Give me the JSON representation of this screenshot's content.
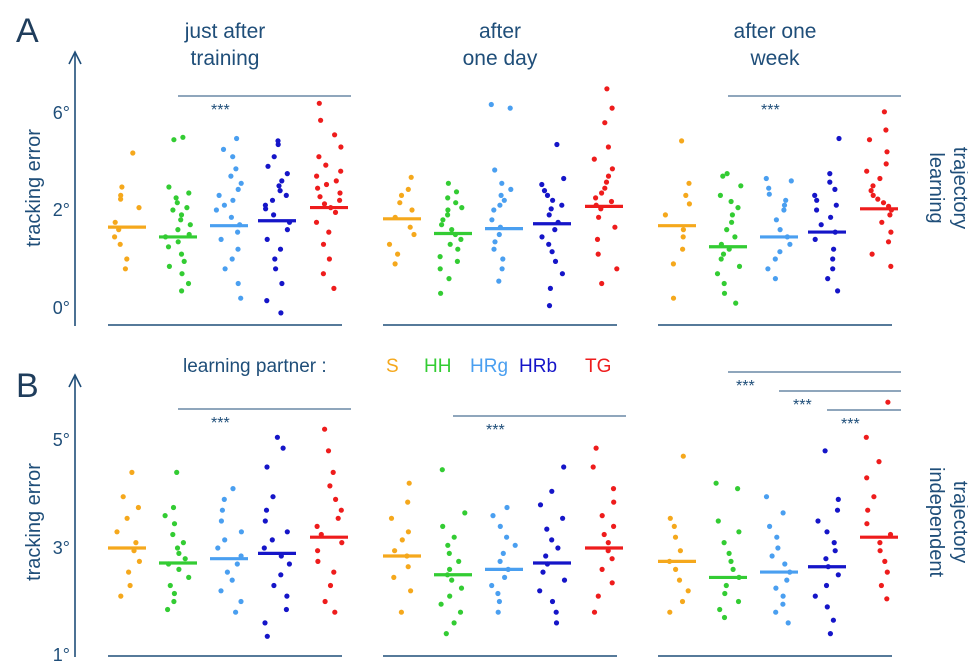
{
  "figure": {
    "panel_letters": [
      "A",
      "B"
    ],
    "conditions": [
      [
        "just after",
        "training"
      ],
      [
        "after",
        "one day"
      ],
      [
        "after one",
        "week"
      ]
    ],
    "legend_label": "learning partner :",
    "right_labels": {
      "A": [
        "learning",
        "trajectory"
      ],
      "B": [
        "independent",
        "trajectory"
      ]
    },
    "y_label": "tracking error",
    "significance_text": "***"
  },
  "groups": [
    {
      "key": "S",
      "color": "#f5a81c"
    },
    {
      "key": "HH",
      "color": "#33cc33"
    },
    {
      "key": "HRg",
      "color": "#4a9ff0"
    },
    {
      "key": "HRb",
      "color": "#1515c8"
    },
    {
      "key": "TG",
      "color": "#ee1c1c"
    }
  ],
  "chart_data": [
    {
      "type": "scatter",
      "panel": "A",
      "title": "learning trajectory",
      "ylabel": "tracking error",
      "yticks": [
        "0°",
        "2°",
        "6°"
      ],
      "ylim": [
        0,
        8
      ],
      "conditions": [
        "just after training",
        "after one day",
        "after one week"
      ],
      "series": [
        {
          "name": "S",
          "means": [
            1.65,
            1.82,
            1.68
          ],
          "points": [
            [
              0.8,
              1.0,
              1.3,
              1.45,
              1.6,
              1.75,
              2.1,
              2.45,
              2.6,
              2.95,
              4.35
            ],
            [
              0.9,
              1.1,
              1.3,
              1.5,
              1.65,
              1.85,
              2.0,
              2.3,
              2.6,
              2.85,
              3.35
            ],
            [
              0.2,
              0.9,
              1.2,
              1.45,
              1.6,
              1.9,
              2.25,
              2.6,
              3.1,
              4.85
            ]
          ]
        },
        {
          "name": "HH",
          "means": [
            1.45,
            1.52,
            1.25
          ],
          "points": [
            [
              0.35,
              0.5,
              0.7,
              0.85,
              0.95,
              1.1,
              1.25,
              1.35,
              1.45,
              1.5,
              1.6,
              1.7,
              1.8,
              1.9,
              2.0,
              2.1,
              2.3,
              2.5,
              2.7,
              2.95,
              4.9,
              5.0
            ],
            [
              0.3,
              0.6,
              0.8,
              0.95,
              1.05,
              1.2,
              1.3,
              1.4,
              1.5,
              1.6,
              1.7,
              1.8,
              1.9,
              2.0,
              2.1,
              2.3,
              2.5,
              2.75,
              3.1
            ],
            [
              0.1,
              0.3,
              0.5,
              0.7,
              0.85,
              1.0,
              1.1,
              1.2,
              1.3,
              1.45,
              1.6,
              1.75,
              1.9,
              2.1,
              2.35,
              2.6,
              3.0,
              3.4,
              3.5
            ]
          ]
        },
        {
          "name": "HRg",
          "means": [
            1.68,
            1.62,
            1.45
          ],
          "points": [
            [
              0.2,
              0.5,
              0.8,
              1.0,
              1.2,
              1.4,
              1.55,
              1.7,
              1.85,
              2.0,
              2.2,
              2.4,
              2.6,
              2.85,
              3.1,
              3.4,
              3.7,
              4.2,
              4.5,
              4.95
            ],
            [
              0.55,
              0.8,
              1.0,
              1.2,
              1.35,
              1.5,
              1.65,
              1.8,
              2.0,
              2.2,
              2.4,
              2.6,
              2.85,
              3.1,
              3.65,
              6.2,
              6.35
            ],
            [
              0.6,
              0.8,
              1.0,
              1.15,
              1.3,
              1.45,
              1.6,
              1.8,
              2.0,
              2.2,
              2.4,
              2.65,
              2.9,
              3.2,
              3.3
            ]
          ]
        },
        {
          "name": "HRb",
          "means": [
            1.78,
            1.72,
            1.55
          ],
          "points": [
            [
              -0.1,
              0.15,
              0.5,
              0.8,
              1.0,
              1.2,
              1.4,
              1.6,
              1.75,
              1.9,
              2.05,
              2.2,
              2.4,
              2.6,
              2.8,
              3.0,
              3.2,
              3.5,
              3.8,
              4.2,
              4.7,
              4.85
            ],
            [
              0.05,
              0.4,
              0.7,
              0.95,
              1.15,
              1.3,
              1.45,
              1.6,
              1.75,
              1.9,
              2.05,
              2.2,
              2.4,
              2.6,
              2.8,
              3.05,
              3.3,
              4.7
            ],
            [
              0.35,
              0.6,
              0.8,
              1.0,
              1.2,
              1.4,
              1.55,
              1.7,
              1.85,
              2.0,
              2.2,
              2.4,
              2.6,
              2.85,
              3.15,
              3.5,
              4.95
            ]
          ]
        },
        {
          "name": "TG",
          "means": [
            2.1,
            2.15,
            2.05
          ],
          "points": [
            [
              0.4,
              0.7,
              1.0,
              1.3,
              1.55,
              1.75,
              1.95,
              2.1,
              2.25,
              2.4,
              2.55,
              2.7,
              2.9,
              3.05,
              3.2,
              3.4,
              3.6,
              3.85,
              4.2,
              4.6,
              5.1,
              5.7,
              6.4
            ],
            [
              0.5,
              0.8,
              1.1,
              1.4,
              1.65,
              1.85,
              2.05,
              2.2,
              2.35,
              2.5,
              2.7,
              2.9,
              3.15,
              3.4,
              3.7,
              4.1,
              4.6,
              5.6,
              6.2,
              7.0
            ],
            [
              0.85,
              1.1,
              1.35,
              1.55,
              1.75,
              1.9,
              2.0,
              2.15,
              2.3,
              2.45,
              2.6,
              2.8,
              3.0,
              3.3,
              3.6,
              3.9,
              4.4,
              4.9,
              5.3,
              6.05
            ]
          ]
        }
      ],
      "significance": [
        {
          "condition": "just after training",
          "from": "HH",
          "to": "TG",
          "label": "***"
        },
        {
          "condition": "after one week",
          "from": "HH",
          "to": "TG",
          "label": "***"
        }
      ]
    },
    {
      "type": "scatter",
      "panel": "B",
      "title": "independent trajectory",
      "ylabel": "tracking error",
      "yticks": [
        "1°",
        "3°",
        "5°"
      ],
      "ylim": [
        1,
        6
      ],
      "conditions": [
        "just after training",
        "after one day",
        "after one week"
      ],
      "series": [
        {
          "name": "S",
          "means": [
            3.0,
            2.85,
            2.75
          ],
          "points": [
            [
              2.1,
              2.3,
              2.55,
              2.75,
              2.95,
              3.1,
              3.3,
              3.55,
              3.75,
              3.95,
              4.4
            ],
            [
              1.8,
              2.2,
              2.45,
              2.65,
              2.85,
              2.95,
              3.15,
              3.3,
              3.55,
              3.85,
              4.2
            ],
            [
              1.8,
              2.0,
              2.2,
              2.4,
              2.6,
              2.75,
              2.95,
              3.2,
              3.4,
              3.55,
              4.7
            ]
          ]
        },
        {
          "name": "HH",
          "means": [
            2.72,
            2.5,
            2.45
          ],
          "points": [
            [
              1.85,
              2.0,
              2.15,
              2.3,
              2.45,
              2.6,
              2.7,
              2.8,
              2.9,
              3.0,
              3.1,
              3.25,
              3.45,
              3.6,
              3.75,
              4.4
            ],
            [
              1.4,
              1.6,
              1.8,
              1.95,
              2.1,
              2.25,
              2.4,
              2.5,
              2.6,
              2.75,
              2.9,
              3.05,
              3.2,
              3.4,
              3.65,
              4.45
            ],
            [
              1.7,
              1.85,
              2.0,
              2.15,
              2.3,
              2.45,
              2.6,
              2.75,
              2.9,
              3.1,
              3.3,
              3.5,
              4.1,
              4.2
            ]
          ]
        },
        {
          "name": "HRg",
          "means": [
            2.8,
            2.6,
            2.55
          ],
          "points": [
            [
              1.8,
              2.0,
              2.2,
              2.4,
              2.55,
              2.7,
              2.85,
              3.0,
              3.15,
              3.3,
              3.5,
              3.7,
              3.9,
              4.1
            ],
            [
              1.8,
              2.0,
              2.15,
              2.3,
              2.45,
              2.6,
              2.75,
              2.9,
              3.05,
              3.2,
              3.4,
              3.6,
              3.75
            ],
            [
              1.6,
              1.8,
              1.95,
              2.1,
              2.25,
              2.4,
              2.55,
              2.7,
              2.85,
              3.0,
              3.2,
              3.4,
              3.65,
              3.95
            ]
          ]
        },
        {
          "name": "HRb",
          "means": [
            2.9,
            2.72,
            2.65
          ],
          "points": [
            [
              1.35,
              1.6,
              1.85,
              2.1,
              2.3,
              2.5,
              2.7,
              2.85,
              3.0,
              3.15,
              3.3,
              3.5,
              3.7,
              3.95,
              4.5,
              4.85,
              5.05
            ],
            [
              1.6,
              1.8,
              2.0,
              2.2,
              2.4,
              2.55,
              2.7,
              2.85,
              3.0,
              3.15,
              3.35,
              3.55,
              3.8,
              4.05,
              4.5
            ],
            [
              1.4,
              1.65,
              1.9,
              2.1,
              2.3,
              2.5,
              2.65,
              2.8,
              2.95,
              3.1,
              3.3,
              3.5,
              3.7,
              3.9,
              4.8
            ]
          ]
        },
        {
          "name": "TG",
          "means": [
            3.2,
            3.0,
            3.2
          ],
          "points": [
            [
              1.8,
              2.0,
              2.3,
              2.55,
              2.75,
              2.95,
              3.1,
              3.25,
              3.4,
              3.55,
              3.7,
              3.9,
              4.15,
              4.4,
              4.8,
              5.2
            ],
            [
              1.8,
              2.1,
              2.35,
              2.6,
              2.8,
              2.95,
              3.1,
              3.25,
              3.4,
              3.6,
              3.85,
              4.1,
              4.5,
              4.85
            ],
            [
              2.05,
              2.3,
              2.55,
              2.75,
              2.95,
              3.1,
              3.25,
              3.45,
              3.7,
              3.95,
              4.3,
              4.6,
              5.05,
              5.7
            ]
          ]
        }
      ],
      "significance": [
        {
          "condition": "just after training",
          "from": "HH",
          "to": "TG",
          "label": "***"
        },
        {
          "condition": "after one day",
          "from": "HH",
          "to": "TG",
          "label": "***"
        },
        {
          "condition": "after one week",
          "from": "HH",
          "to": "TG",
          "label": "***"
        },
        {
          "condition": "after one week",
          "from": "HRg",
          "to": "TG",
          "label": "***"
        },
        {
          "condition": "after one week",
          "from": "HRb",
          "to": "TG",
          "label": "***"
        }
      ]
    }
  ]
}
